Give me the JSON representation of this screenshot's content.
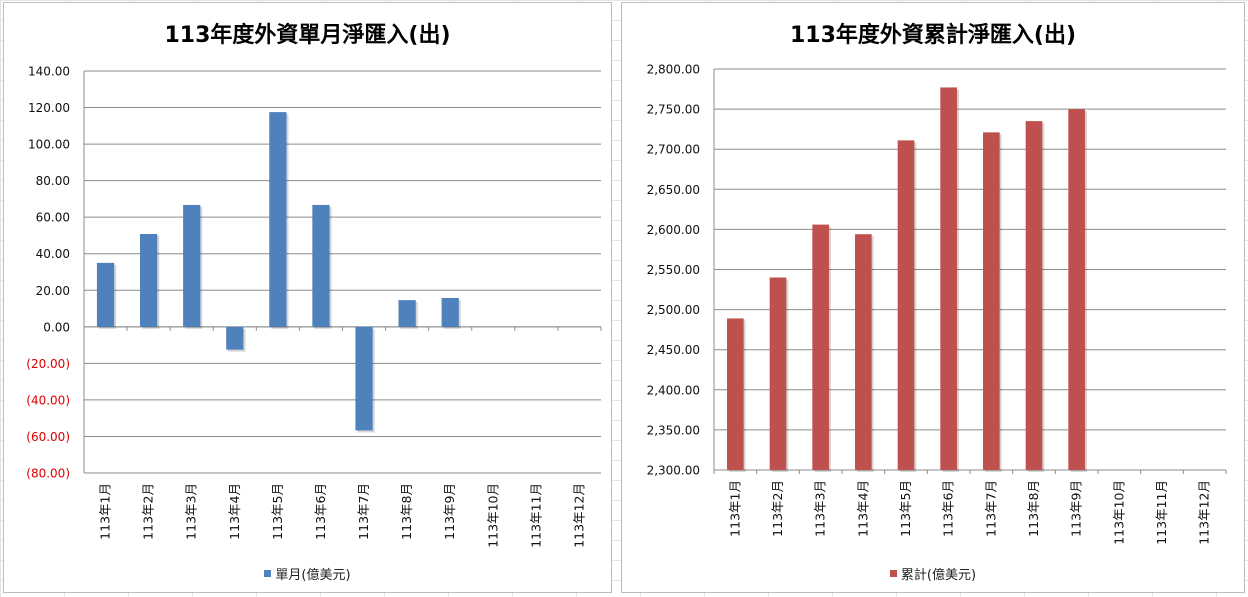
{
  "chart_data": [
    {
      "type": "bar",
      "title": "113年度外資單月淨匯入(出)",
      "categories": [
        "113年1月",
        "113年2月",
        "113年3月",
        "113年4月",
        "113年5月",
        "113年6月",
        "113年7月",
        "113年8月",
        "113年9月",
        "113年10月",
        "113年11月",
        "113年12月"
      ],
      "series": [
        {
          "name": "單月(億美元)",
          "color": "#4f81bd",
          "values": [
            35.0,
            50.8,
            66.7,
            -12.5,
            117.5,
            66.7,
            -56.7,
            14.6,
            15.8,
            null,
            null,
            null
          ]
        }
      ],
      "ylim": [
        -80,
        140
      ],
      "yticks": [
        140,
        120,
        100,
        80,
        60,
        40,
        20,
        0,
        -20,
        -40,
        -60,
        -80
      ],
      "ytick_labels": [
        "140.00",
        "120.00",
        "100.00",
        "80.00",
        "60.00",
        "40.00",
        "20.00",
        "0.00",
        "(20.00)",
        "(40.00)",
        "(60.00)",
        "(80.00)"
      ],
      "negative_label_color": "#e00000",
      "grid": true,
      "legend_position": "bottom"
    },
    {
      "type": "bar",
      "title": "113年度外資累計淨匯入(出)",
      "categories": [
        "113年1月",
        "113年2月",
        "113年3月",
        "113年4月",
        "113年5月",
        "113年6月",
        "113年7月",
        "113年8月",
        "113年9月",
        "113年10月",
        "113年11月",
        "113年12月"
      ],
      "series": [
        {
          "name": "累計(億美元)",
          "color": "#c0504d",
          "values": [
            2489,
            2540,
            2606,
            2594,
            2711,
            2777,
            2721,
            2735,
            2750,
            null,
            null,
            null
          ]
        }
      ],
      "ylim": [
        2300,
        2800
      ],
      "yticks": [
        2800,
        2750,
        2700,
        2650,
        2600,
        2550,
        2500,
        2450,
        2400,
        2350,
        2300
      ],
      "ytick_labels": [
        "2,800.00",
        "2,750.00",
        "2,700.00",
        "2,650.00",
        "2,600.00",
        "2,550.00",
        "2,500.00",
        "2,450.00",
        "2,400.00",
        "2,350.00",
        "2,300.00"
      ],
      "grid": true,
      "legend_position": "bottom"
    }
  ]
}
